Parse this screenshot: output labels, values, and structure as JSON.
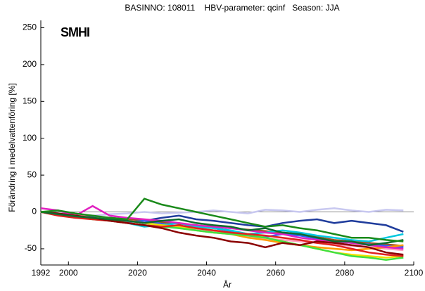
{
  "chart_data": {
    "type": "line",
    "title": "BASINNO: 108011    HBV-parameter: qcinf   Season: JJA",
    "xlabel": "År",
    "ylabel": "Förändring i medelvattenföring [%]",
    "logo": "SMHI",
    "xlim": [
      1992,
      2100
    ],
    "xticks": [
      1992,
      2000,
      2020,
      2040,
      2060,
      2080,
      2100
    ],
    "ylim": [
      -72,
      260
    ],
    "yticks": [
      -50,
      0,
      50,
      100,
      150,
      200,
      250
    ],
    "x": [
      1992,
      1997,
      2002,
      2007,
      2012,
      2017,
      2022,
      2027,
      2032,
      2037,
      2042,
      2047,
      2052,
      2057,
      2062,
      2067,
      2072,
      2077,
      2082,
      2087,
      2092,
      2097
    ],
    "series": [
      {
        "color": "#c8c8f0",
        "values": [
          0,
          -2,
          -3,
          -5,
          -3,
          -2,
          0,
          -2,
          -1,
          0,
          2,
          0,
          -2,
          3,
          2,
          0,
          3,
          5,
          2,
          0,
          3,
          2
        ]
      },
      {
        "color": "#1f3c9c",
        "values": [
          0,
          -3,
          -5,
          -6,
          -8,
          -10,
          -12,
          -8,
          -5,
          -10,
          -12,
          -15,
          -18,
          -20,
          -15,
          -12,
          -10,
          -15,
          -12,
          -15,
          -18,
          -27
        ]
      },
      {
        "color": "#a05020",
        "values": [
          0,
          -2,
          -4,
          -6,
          -8,
          -10,
          -12,
          -14,
          -16,
          -18,
          -20,
          -22,
          -24,
          -26,
          -28,
          -30,
          -34,
          -38,
          -40,
          -42,
          -44,
          -46
        ]
      },
      {
        "color": "#ffa0c0",
        "values": [
          0,
          -2,
          -4,
          -6,
          -10,
          -12,
          -14,
          -18,
          -20,
          -24,
          -26,
          -30,
          -34,
          -36,
          -38,
          -40,
          -42,
          -44,
          -46,
          -48,
          -50,
          -52
        ]
      },
      {
        "color": "#3060ff",
        "values": [
          0,
          -4,
          -8,
          -6,
          -10,
          -14,
          -12,
          -16,
          -20,
          -18,
          -22,
          -26,
          -30,
          -34,
          -30,
          -32,
          -36,
          -40,
          -42,
          -44,
          -46,
          -48
        ]
      },
      {
        "color": "#00c8e0",
        "values": [
          0,
          -2,
          -5,
          -8,
          -10,
          -15,
          -20,
          -18,
          -15,
          -20,
          -22,
          -25,
          -30,
          -28,
          -25,
          -28,
          -32,
          -35,
          -38,
          -40,
          -35,
          -30
        ]
      },
      {
        "color": "#ff9900",
        "values": [
          0,
          -4,
          -6,
          -8,
          -10,
          -12,
          -15,
          -18,
          -22,
          -25,
          -28,
          -30,
          -35,
          -38,
          -42,
          -45,
          -48,
          -50,
          -52,
          -50,
          -48,
          -45
        ]
      },
      {
        "color": "#f0e000",
        "values": [
          0,
          -3,
          -5,
          -8,
          -10,
          -12,
          -15,
          -18,
          -20,
          -22,
          -25,
          -28,
          -30,
          -35,
          -40,
          -45,
          -50,
          -55,
          -58,
          -60,
          -62,
          -60
        ]
      },
      {
        "color": "#40e040",
        "values": [
          0,
          -3,
          -6,
          -10,
          -12,
          -15,
          -18,
          -20,
          -22,
          -25,
          -28,
          -30,
          -32,
          -35,
          -40,
          -45,
          -50,
          -55,
          -60,
          -62,
          -65,
          -62
        ]
      },
      {
        "color": "#e020c0",
        "values": [
          5,
          2,
          -5,
          8,
          -5,
          -8,
          -10,
          -12,
          -15,
          -18,
          -20,
          -22,
          -25,
          -28,
          -30,
          -35,
          -38,
          -40,
          -42,
          -45,
          -48,
          -50
        ]
      },
      {
        "color": "#e02020",
        "values": [
          0,
          -5,
          -8,
          -10,
          -12,
          -15,
          -18,
          -20,
          -18,
          -22,
          -25,
          -28,
          -30,
          -32,
          -35,
          -38,
          -42,
          -45,
          -50,
          -55,
          -58,
          -60
        ]
      },
      {
        "color": "#8b0000",
        "values": [
          0,
          -2,
          -5,
          -8,
          -12,
          -15,
          -18,
          -22,
          -28,
          -32,
          -35,
          -40,
          -42,
          -48,
          -42,
          -45,
          -40,
          -42,
          -45,
          -48,
          -55,
          -58
        ]
      },
      {
        "color": "#0d6b2e",
        "values": [
          0,
          -3,
          -6,
          -8,
          -10,
          -12,
          -15,
          -12,
          -10,
          -15,
          -18,
          -20,
          -25,
          -22,
          -28,
          -30,
          -35,
          -40,
          -40,
          -45,
          -42,
          -38
        ]
      },
      {
        "color": "#1a8a1a",
        "values": [
          0,
          2,
          -2,
          -5,
          -8,
          -10,
          18,
          10,
          5,
          0,
          -5,
          -10,
          -15,
          -20,
          -18,
          -22,
          -25,
          -30,
          -35,
          -35,
          -38,
          -40
        ]
      }
    ]
  }
}
